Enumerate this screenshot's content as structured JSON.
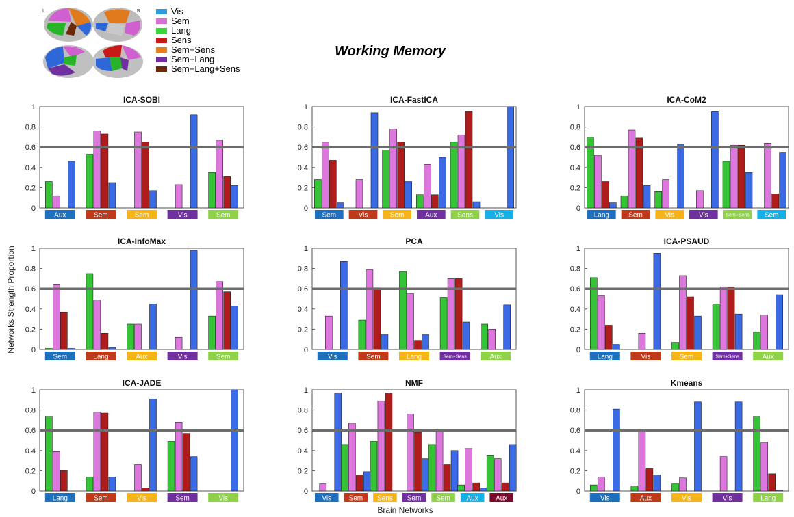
{
  "figure": {
    "title": "Working Memory",
    "ylabel": "Networks Strength Proportion",
    "xlabel": "Brain Networks",
    "threshold": 0.6,
    "hemisphere_labels": [
      "L",
      "R"
    ]
  },
  "legend": [
    {
      "label": "Vis",
      "color": "#2e9ad9"
    },
    {
      "label": "Sem",
      "color": "#dc6fd6"
    },
    {
      "label": "Lang",
      "color": "#3ad63a"
    },
    {
      "label": "Sens",
      "color": "#c81818"
    },
    {
      "label": "Sem+Sens",
      "color": "#e67e1e"
    },
    {
      "label": "Sem+Lang",
      "color": "#7030a0"
    },
    {
      "label": "Sem+Lang+Sens",
      "color": "#6b2a0a"
    }
  ],
  "bar_colors": {
    "Lang": "#35c435",
    "Sem": "#dd77dd",
    "Sens": "#b01c1c",
    "Vis": "#3a6ae6"
  },
  "chart_data": [
    {
      "type": "bar",
      "title": "ICA-SOBI",
      "ylim": [
        0,
        1
      ],
      "yticks": [
        "0",
        "0.2",
        "0.4",
        "0.6",
        "0.8",
        "1"
      ],
      "groups": [
        {
          "label": "Aux",
          "color": "#1f6fbf",
          "values": [
            0.26,
            0.12,
            0,
            0.46
          ]
        },
        {
          "label": "Sem",
          "color": "#c0391b",
          "values": [
            0.53,
            0.76,
            0.73,
            0.25
          ]
        },
        {
          "label": "Sem",
          "color": "#f6b418",
          "values": [
            0,
            0.75,
            0.65,
            0.17
          ]
        },
        {
          "label": "Vis",
          "color": "#7030a0",
          "values": [
            0,
            0.23,
            0,
            0.92
          ]
        },
        {
          "label": "Sem",
          "color": "#8fd24a",
          "values": [
            0.35,
            0.67,
            0.31,
            0.22
          ]
        }
      ]
    },
    {
      "type": "bar",
      "title": "ICA-FastICA",
      "ylim": [
        0,
        1
      ],
      "yticks": [
        "0",
        "0.2",
        "0.4",
        "0.6",
        "0.8",
        "1"
      ],
      "groups": [
        {
          "label": "Sem",
          "color": "#1f6fbf",
          "values": [
            0.28,
            0.65,
            0.47,
            0.05
          ]
        },
        {
          "label": "Vis",
          "color": "#c0391b",
          "values": [
            0,
            0.28,
            0,
            0.94
          ]
        },
        {
          "label": "Sem",
          "color": "#f6b418",
          "values": [
            0.57,
            0.78,
            0.65,
            0.26
          ]
        },
        {
          "label": "Aux",
          "color": "#7030a0",
          "values": [
            0.13,
            0.43,
            0.13,
            0.5
          ]
        },
        {
          "label": "Sens",
          "color": "#8fd24a",
          "values": [
            0.65,
            0.72,
            0.95,
            0.06
          ]
        },
        {
          "label": "Vis",
          "color": "#14b0e8",
          "values": [
            0,
            0,
            0,
            1.0
          ]
        }
      ]
    },
    {
      "type": "bar",
      "title": "ICA-CoM2",
      "ylim": [
        0,
        1
      ],
      "yticks": [
        "0",
        "0.2",
        "0.4",
        "0.6",
        "0.8",
        "1"
      ],
      "groups": [
        {
          "label": "Lang",
          "color": "#1f6fbf",
          "values": [
            0.7,
            0.52,
            0.26,
            0.05
          ]
        },
        {
          "label": "Sem",
          "color": "#c0391b",
          "values": [
            0.12,
            0.77,
            0.69,
            0.22
          ]
        },
        {
          "label": "Vis",
          "color": "#f6b418",
          "values": [
            0.16,
            0.28,
            0,
            0.63
          ]
        },
        {
          "label": "Vis",
          "color": "#7030a0",
          "values": [
            0,
            0.17,
            0,
            0.95
          ]
        },
        {
          "label": "Sem+Sens",
          "color": "#8fd24a",
          "values": [
            0.46,
            0.62,
            0.62,
            0.35
          ]
        },
        {
          "label": "Sem",
          "color": "#14b0e8",
          "values": [
            0,
            0.64,
            0.14,
            0.55
          ]
        }
      ]
    },
    {
      "type": "bar",
      "title": "ICA-InfoMax",
      "ylim": [
        0,
        1
      ],
      "yticks": [
        "0",
        "0.2",
        "0.4",
        "0.6",
        "0.8",
        "1"
      ],
      "groups": [
        {
          "label": "Sem",
          "color": "#1f6fbf",
          "values": [
            0.01,
            0.64,
            0.37,
            0.01
          ]
        },
        {
          "label": "Lang",
          "color": "#c0391b",
          "values": [
            0.75,
            0.49,
            0.16,
            0.02
          ]
        },
        {
          "label": "Aux",
          "color": "#f6b418",
          "values": [
            0.25,
            0.25,
            0,
            0.45
          ]
        },
        {
          "label": "Vis",
          "color": "#7030a0",
          "values": [
            0,
            0.12,
            0,
            0.98
          ]
        },
        {
          "label": "Sem",
          "color": "#8fd24a",
          "values": [
            0.33,
            0.67,
            0.57,
            0.43
          ]
        }
      ]
    },
    {
      "type": "bar",
      "title": "PCA",
      "ylim": [
        0,
        1
      ],
      "yticks": [
        "0",
        "0.2",
        "0.4",
        "0.6",
        "0.8",
        "1"
      ],
      "groups": [
        {
          "label": "Vis",
          "color": "#1f6fbf",
          "values": [
            0,
            0.33,
            0,
            0.87
          ]
        },
        {
          "label": "Sem",
          "color": "#c0391b",
          "values": [
            0.29,
            0.79,
            0.61,
            0.15
          ]
        },
        {
          "label": "Lang",
          "color": "#f6b418",
          "values": [
            0.77,
            0.55,
            0.09,
            0.15
          ]
        },
        {
          "label": "Sem+Sens",
          "color": "#7030a0",
          "values": [
            0.51,
            0.7,
            0.7,
            0.27
          ]
        },
        {
          "label": "Aux",
          "color": "#8fd24a",
          "values": [
            0.25,
            0.2,
            0,
            0.44
          ]
        }
      ]
    },
    {
      "type": "bar",
      "title": "ICA-PSAUD",
      "ylim": [
        0,
        1
      ],
      "yticks": [
        "0",
        "0.2",
        "0.4",
        "0.6",
        "0.8",
        "1"
      ],
      "groups": [
        {
          "label": "Lang",
          "color": "#1f6fbf",
          "values": [
            0.71,
            0.53,
            0.24,
            0.05
          ]
        },
        {
          "label": "Vis",
          "color": "#c0391b",
          "values": [
            0,
            0.16,
            0,
            0.95
          ]
        },
        {
          "label": "Sem",
          "color": "#f6b418",
          "values": [
            0.07,
            0.73,
            0.52,
            0.33
          ]
        },
        {
          "label": "Sem+Sens",
          "color": "#7030a0",
          "values": [
            0.45,
            0.62,
            0.62,
            0.35
          ]
        },
        {
          "label": "Aux",
          "color": "#8fd24a",
          "values": [
            0.17,
            0.34,
            0,
            0.54
          ]
        }
      ]
    },
    {
      "type": "bar",
      "title": "ICA-JADE",
      "ylim": [
        0,
        1
      ],
      "yticks": [
        "0",
        "0.2",
        "0.4",
        "0.6",
        "0.8",
        "1"
      ],
      "groups": [
        {
          "label": "Lang",
          "color": "#1f6fbf",
          "values": [
            0.74,
            0.39,
            0.2,
            0
          ]
        },
        {
          "label": "Sem",
          "color": "#c0391b",
          "values": [
            0.14,
            0.78,
            0.77,
            0.14
          ]
        },
        {
          "label": "Vis",
          "color": "#f6b418",
          "values": [
            0,
            0.26,
            0.03,
            0.91
          ]
        },
        {
          "label": "Sem",
          "color": "#7030a0",
          "values": [
            0.49,
            0.68,
            0.57,
            0.34
          ]
        },
        {
          "label": "Vis",
          "color": "#8fd24a",
          "values": [
            0,
            0,
            0,
            1.0
          ]
        }
      ]
    },
    {
      "type": "bar",
      "title": "NMF",
      "ylim": [
        0,
        1
      ],
      "yticks": [
        "0",
        "0.2",
        "0.4",
        "0.6",
        "0.8",
        "1"
      ],
      "groups": [
        {
          "label": "Vis",
          "color": "#1f6fbf",
          "values": [
            0,
            0.07,
            0,
            0.97
          ]
        },
        {
          "label": "Sem",
          "color": "#c0391b",
          "values": [
            0.46,
            0.67,
            0.16,
            0.19
          ]
        },
        {
          "label": "Sens",
          "color": "#f6b418",
          "values": [
            0.49,
            0.89,
            0.97,
            0
          ]
        },
        {
          "label": "Sem",
          "color": "#7030a0",
          "values": [
            0,
            0.76,
            0.58,
            0.32
          ]
        },
        {
          "label": "Sem",
          "color": "#8fd24a",
          "values": [
            0.46,
            0.61,
            0.26,
            0.4
          ]
        },
        {
          "label": "Aux",
          "color": "#14b0e8",
          "values": [
            0.06,
            0.42,
            0.08,
            0.03
          ]
        },
        {
          "label": "Aux",
          "color": "#7a0a2a",
          "values": [
            0.35,
            0.32,
            0.08,
            0.46
          ]
        }
      ]
    },
    {
      "type": "bar",
      "title": "Kmeans",
      "ylim": [
        0,
        1
      ],
      "yticks": [
        "0",
        "0.2",
        "0.4",
        "0.6",
        "0.8",
        "1"
      ],
      "groups": [
        {
          "label": "Vis",
          "color": "#1f6fbf",
          "values": [
            0.06,
            0.14,
            0,
            0.81
          ]
        },
        {
          "label": "Aux",
          "color": "#c0391b",
          "values": [
            0.05,
            0.6,
            0.22,
            0.16
          ]
        },
        {
          "label": "Vis",
          "color": "#f6b418",
          "values": [
            0.07,
            0.13,
            0,
            0.88
          ]
        },
        {
          "label": "Vis",
          "color": "#7030a0",
          "values": [
            0,
            0.34,
            0,
            0.88
          ]
        },
        {
          "label": "Lang",
          "color": "#8fd24a",
          "values": [
            0.74,
            0.48,
            0.17,
            0.01
          ]
        }
      ]
    }
  ]
}
